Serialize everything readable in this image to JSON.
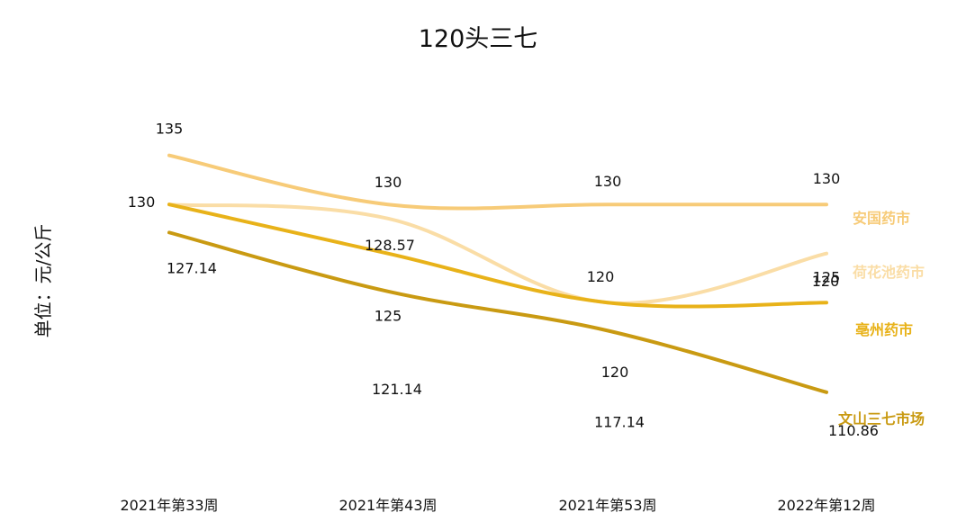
{
  "chart_data": {
    "type": "line",
    "title": "120头三七",
    "xlabel": "",
    "ylabel": "单位：元/公斤",
    "categories": [
      "2021年第33周",
      "2021年第43周",
      "2021年第53周",
      "2022年第12周"
    ],
    "ylim": [
      105,
      140
    ],
    "grid": false,
    "legend": "inline-right",
    "series": [
      {
        "name": "安国药市",
        "values": [
          135,
          130,
          130,
          130
        ],
        "color": "#F7CB78"
      },
      {
        "name": "荷花池药市",
        "values": [
          130,
          128.57,
          120,
          125
        ],
        "color": "#FADDA6"
      },
      {
        "name": "亳州药市",
        "values": [
          130,
          125,
          120,
          120
        ],
        "color": "#E8B219"
      },
      {
        "name": "文山三七市场",
        "values": [
          127.14,
          121.14,
          117.14,
          110.86
        ],
        "color": "#C99A12"
      }
    ],
    "data_labels": [
      [
        "135",
        "130",
        "130",
        "130"
      ],
      [
        "130",
        "128.57",
        "120",
        "125"
      ],
      [
        "",
        "125",
        "120",
        "120"
      ],
      [
        "127.14",
        "121.14",
        "117.14",
        "110.86"
      ]
    ]
  }
}
